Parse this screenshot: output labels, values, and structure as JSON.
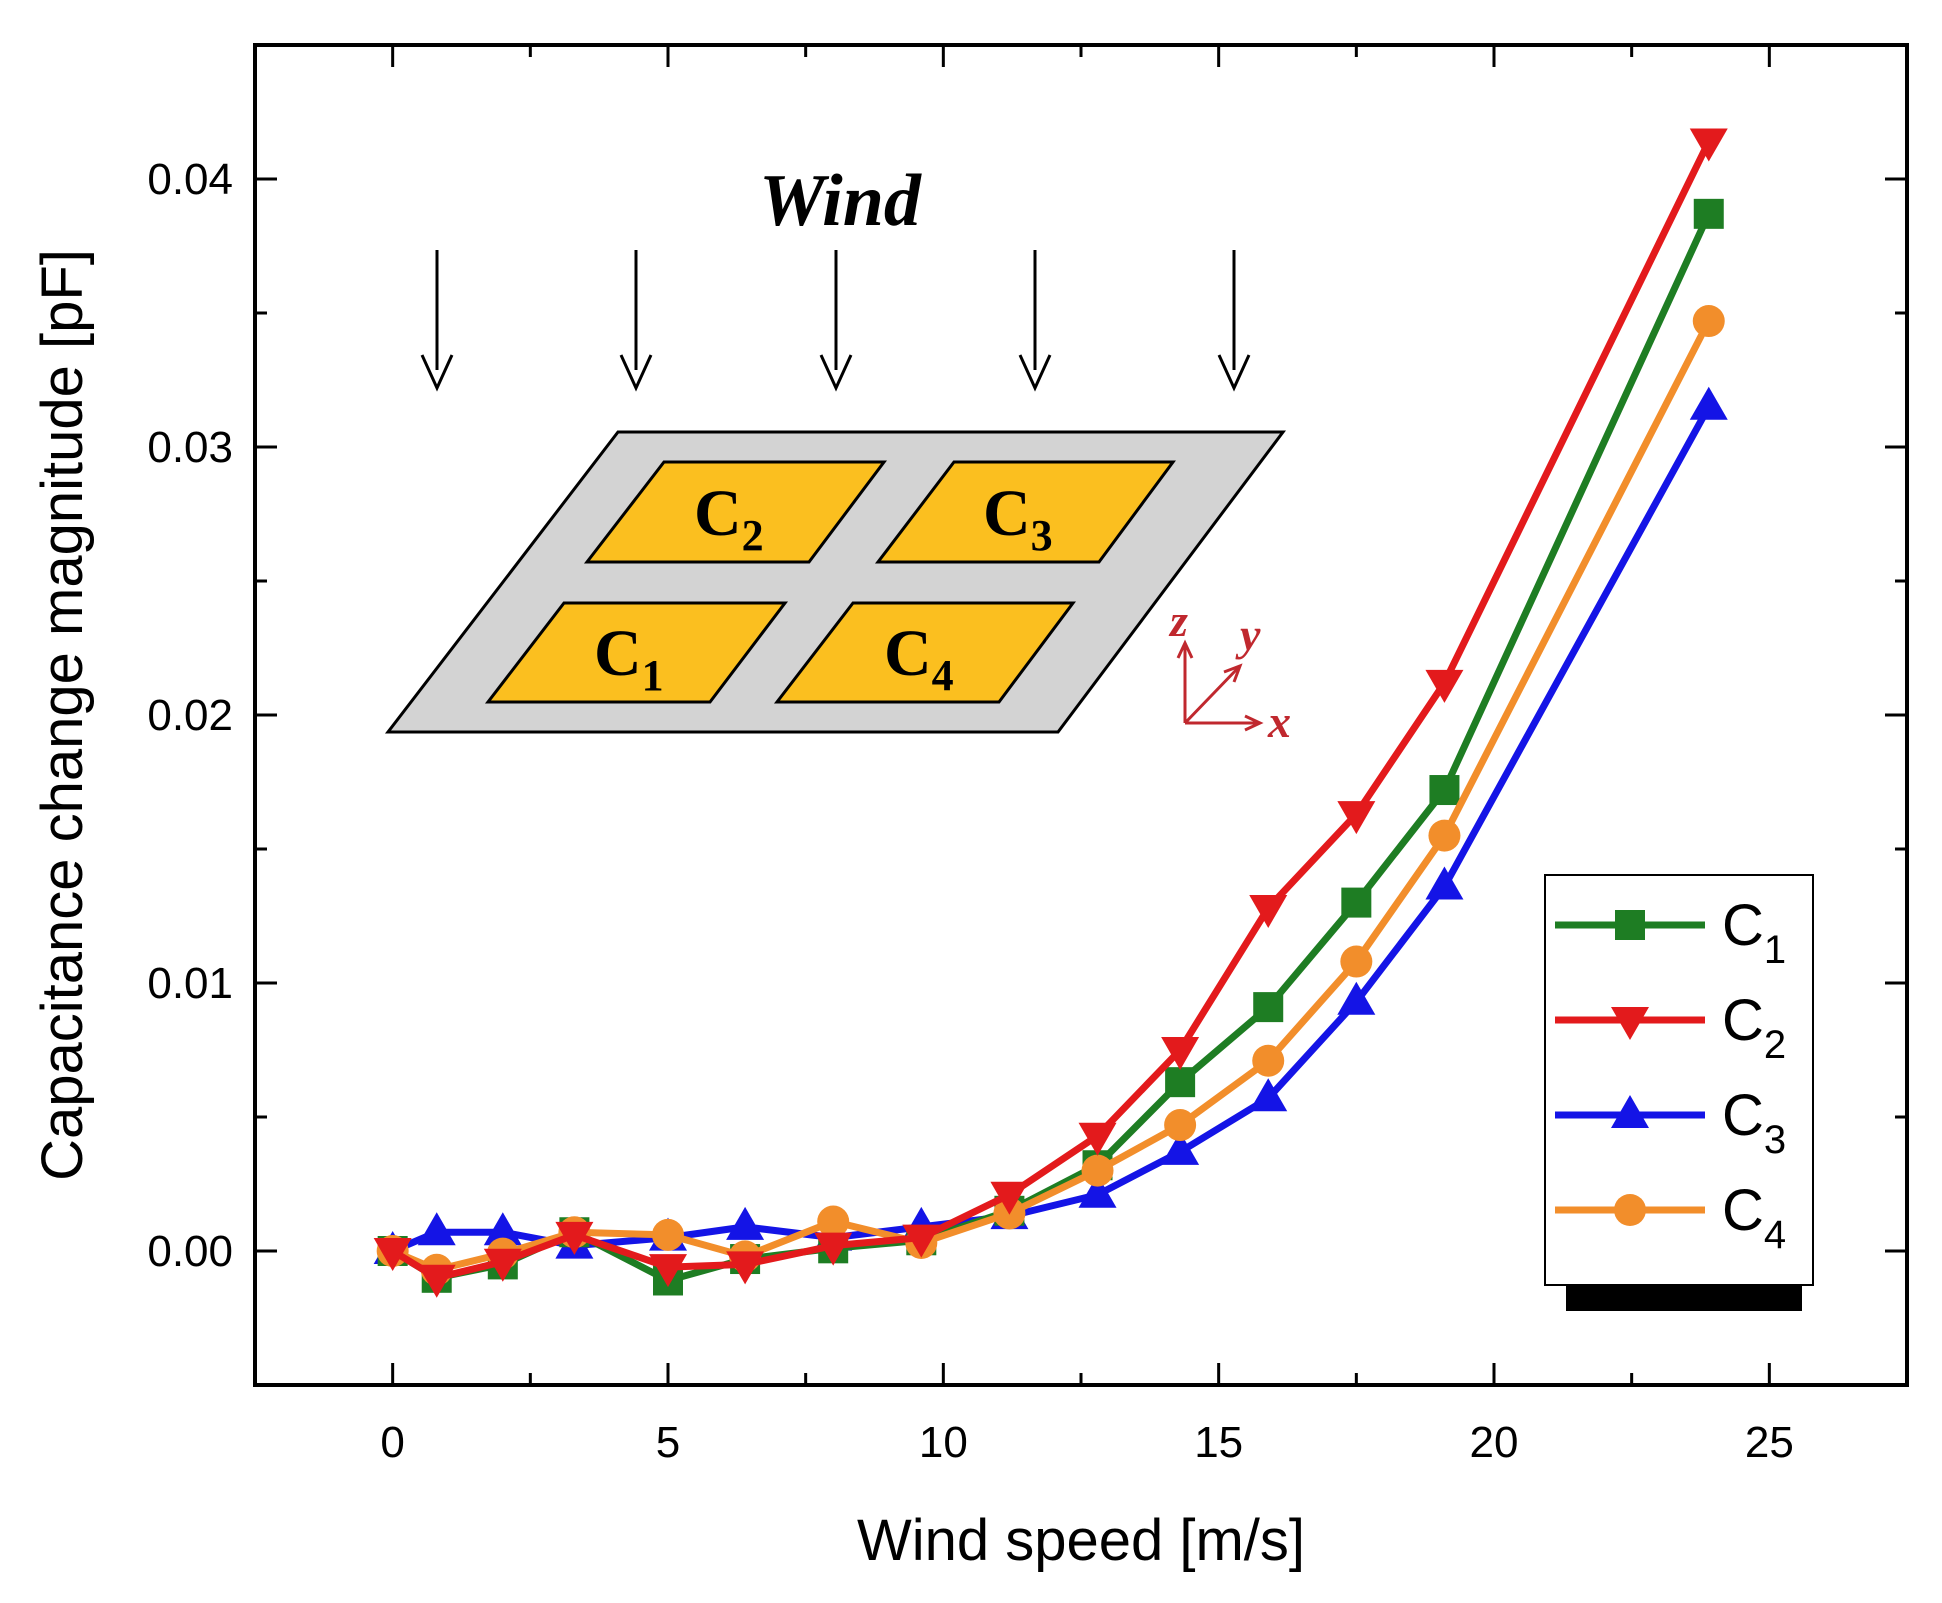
{
  "chart_data": {
    "type": "line",
    "xlabel": "Wind speed [m/s]",
    "ylabel": "Capacitance change magnitude [pF]",
    "xlim": [
      -2.5,
      27.5
    ],
    "ylim": [
      -0.005,
      0.045
    ],
    "x_ticks": [
      "0",
      "5",
      "10",
      "15",
      "20",
      "25"
    ],
    "y_ticks": [
      "0.00",
      "0.01",
      "0.02",
      "0.03",
      "0.04"
    ],
    "x": [
      0,
      0.8,
      2,
      3.3,
      5,
      6.4,
      8,
      9.6,
      11.2,
      12.8,
      14.3,
      15.9,
      17.5,
      19.1,
      23.9
    ],
    "series": [
      {
        "name": "C",
        "subscript": "1",
        "color": "#1e7d23",
        "marker": "square",
        "values": [
          0.0,
          -0.001,
          -0.0005,
          0.0007,
          -0.0011,
          -0.0003,
          0.0001,
          0.0004,
          0.0015,
          0.0032,
          0.0063,
          0.0091,
          0.013,
          0.0172,
          0.0387
        ]
      },
      {
        "name": "C",
        "subscript": "2",
        "color": "#e31a1c",
        "marker": "triangle-down",
        "values": [
          0.0,
          -0.001,
          -0.0004,
          0.0006,
          -0.0006,
          -0.0005,
          0.0002,
          0.0005,
          0.0021,
          0.0043,
          0.0075,
          0.0128,
          0.0163,
          0.0212,
          0.0414
        ]
      },
      {
        "name": "C",
        "subscript": "3",
        "color": "#1414e6",
        "marker": "triangle-up",
        "values": [
          0.0,
          0.0007,
          0.0007,
          0.0002,
          0.0005,
          0.0009,
          0.0005,
          0.0009,
          0.0013,
          0.0021,
          0.0037,
          0.0057,
          0.0093,
          0.0136,
          0.0315
        ]
      },
      {
        "name": "C",
        "subscript": "4",
        "color": "#f28e2b",
        "marker": "circle",
        "values": [
          0.0,
          -0.0007,
          -0.0001,
          0.0007,
          0.0006,
          -0.0002,
          0.0011,
          0.0003,
          0.0014,
          0.003,
          0.0047,
          0.0071,
          0.0108,
          0.0155,
          0.0347
        ]
      }
    ],
    "legend_position": "bottom-right"
  },
  "inset": {
    "wind_label": "Wind",
    "capacitors": [
      {
        "label": "C",
        "subscript": "2"
      },
      {
        "label": "C",
        "subscript": "3"
      },
      {
        "label": "C",
        "subscript": "1"
      },
      {
        "label": "C",
        "subscript": "4"
      }
    ],
    "axes": {
      "z": "z",
      "y": "y",
      "x": "x"
    },
    "plate_color": "#d3d3d3",
    "pad_color": "#fbbf1f"
  }
}
